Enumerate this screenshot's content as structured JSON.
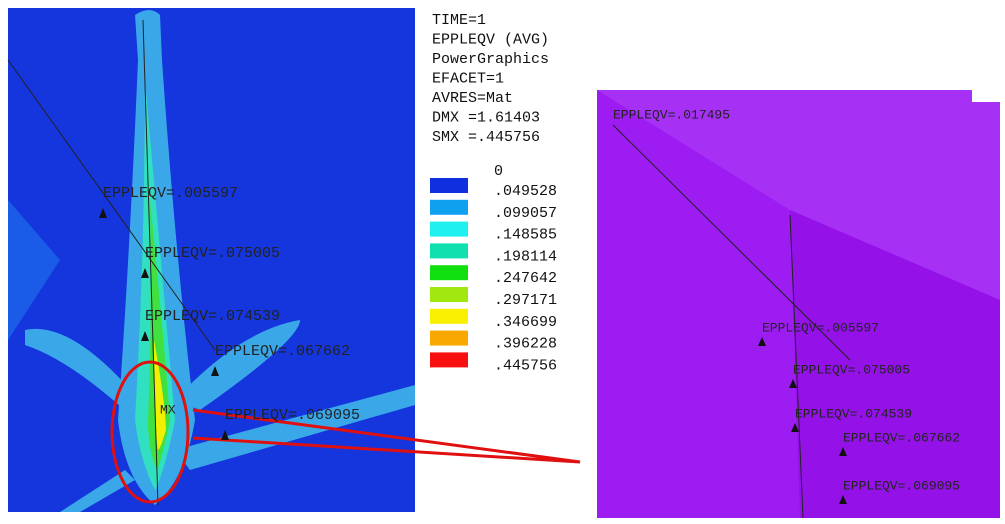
{
  "info": [
    "TIME=1",
    "EPPLEQV   (AVG)",
    "PowerGraphics",
    "EFACET=1",
    "AVRES=Mat",
    "DMX =1.61403",
    "SMX =.445756"
  ],
  "legend": {
    "min": "0",
    "levels": [
      {
        "label": ".049528",
        "color": "#1030e0"
      },
      {
        "label": ".099057",
        "color": "#10a0f0"
      },
      {
        "label": ".148585",
        "color": "#20f0f0"
      },
      {
        "label": ".198114",
        "color": "#10e0b0"
      },
      {
        "label": ".247642",
        "color": "#10e010"
      },
      {
        "label": ".297171",
        "color": "#a0e810"
      },
      {
        "label": ".346699",
        "color": "#f8f000"
      },
      {
        "label": ".396228",
        "color": "#f8a800"
      },
      {
        "label": ".445756",
        "color": "#f81010"
      }
    ]
  },
  "left_view": {
    "max_marker": "MX",
    "annotations": [
      "EPPLEQV=.005597",
      "EPPLEQV=.075005",
      "EPPLEQV=.074539",
      "EPPLEQV=.067662",
      "EPPLEQV=.069095"
    ]
  },
  "right_view": {
    "annotations": [
      "EPPLEQV=.017495",
      "EPPLEQV=.005597",
      "EPPLEQV=.075005",
      "EPPLEQV=.074539",
      "EPPLEQV=.067662",
      "EPPLEQV=.069095"
    ]
  }
}
